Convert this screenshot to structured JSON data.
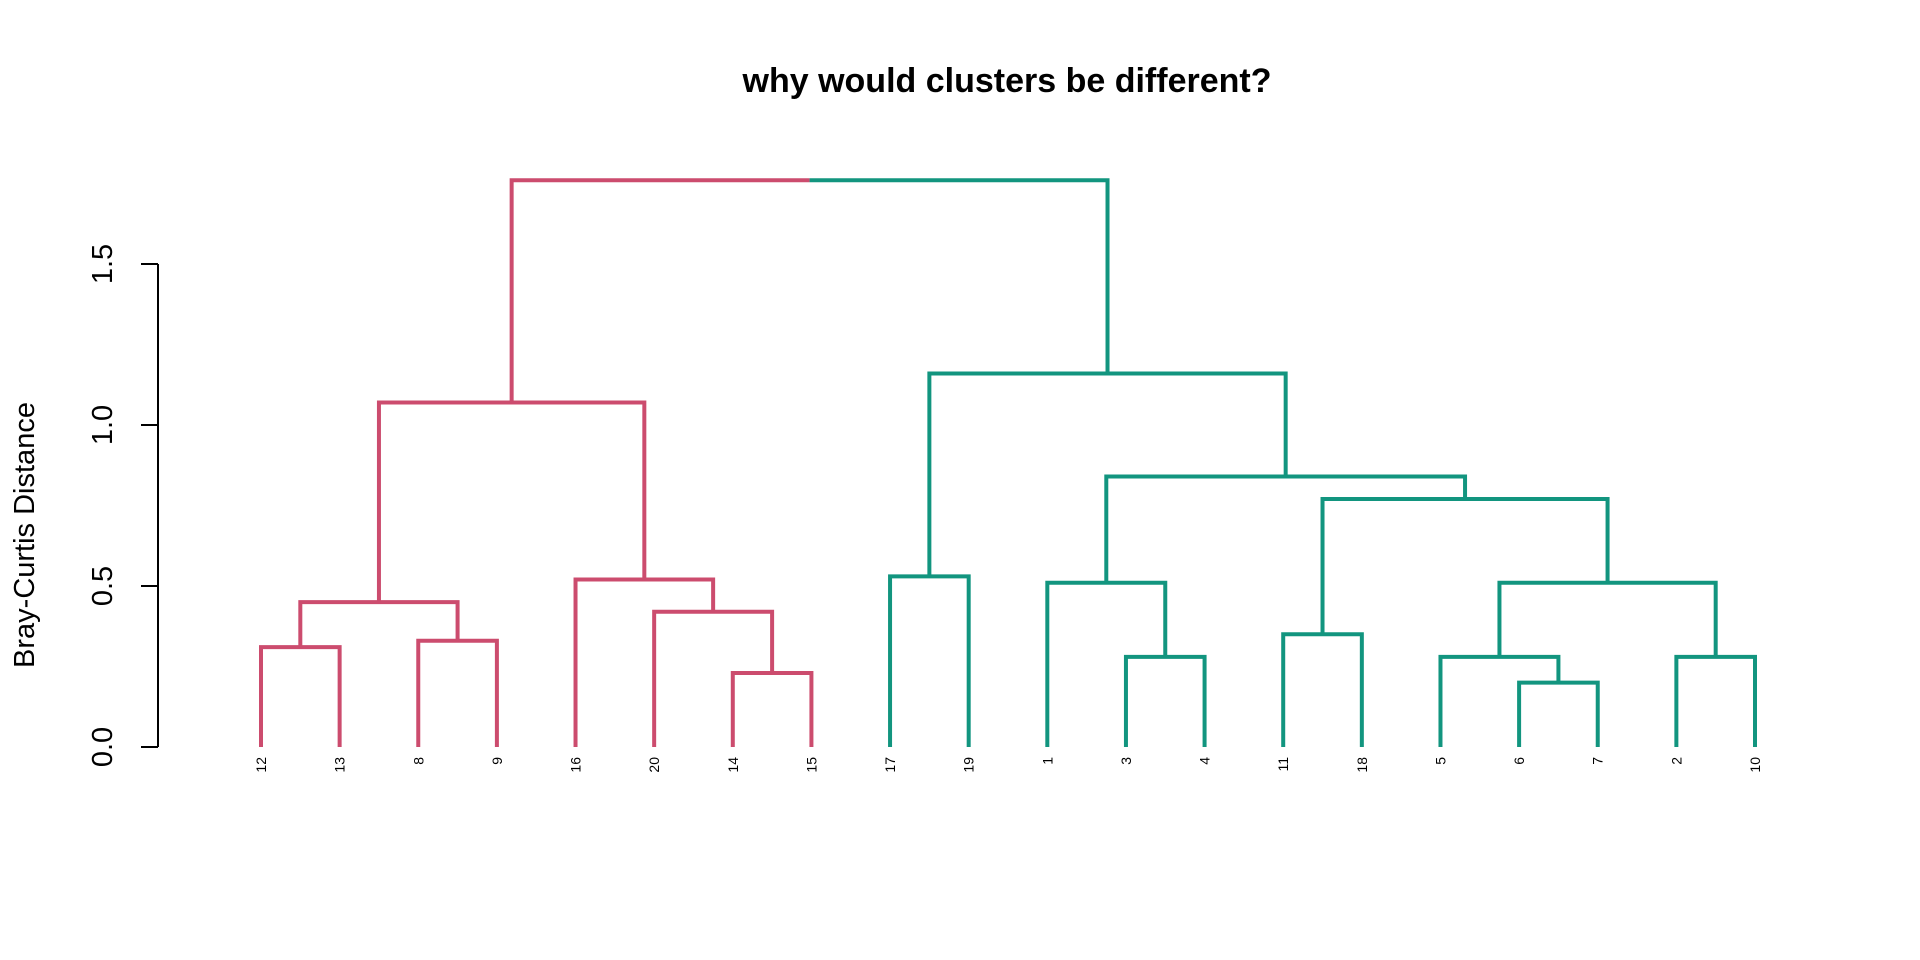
{
  "chart_data": {
    "type": "dendrogram",
    "title": "why would clusters be different?",
    "ylabel": "Bray-Curtis Distance",
    "xlabel": "",
    "ylim": [
      0,
      1.8
    ],
    "yticks": [
      0.0,
      0.5,
      1.0,
      1.5
    ],
    "ytick_labels": [
      "0.0",
      "0.5",
      "1.0",
      "1.5"
    ],
    "leaf_order": [
      "12",
      "13",
      "8",
      "9",
      "16",
      "20",
      "14",
      "15",
      "17",
      "19",
      "1",
      "3",
      "4",
      "11",
      "18",
      "5",
      "6",
      "7",
      "2",
      "10"
    ],
    "clusters": [
      {
        "color": "#CC4C6E",
        "leaves": [
          "12",
          "13",
          "8",
          "9",
          "16",
          "20",
          "14",
          "15"
        ]
      },
      {
        "color": "#12957F",
        "leaves": [
          "17",
          "19",
          "1",
          "3",
          "4",
          "11",
          "18",
          "5",
          "6",
          "7",
          "2",
          "10"
        ]
      }
    ],
    "merges": [
      {
        "id": "n1",
        "children": [
          "12",
          "13"
        ],
        "height": 0.31
      },
      {
        "id": "n2",
        "children": [
          "8",
          "9"
        ],
        "height": 0.33
      },
      {
        "id": "n3",
        "children": [
          "n1",
          "n2"
        ],
        "height": 0.45
      },
      {
        "id": "n4",
        "children": [
          "14",
          "15"
        ],
        "height": 0.23
      },
      {
        "id": "n5",
        "children": [
          "20",
          "n4"
        ],
        "height": 0.42
      },
      {
        "id": "n6",
        "children": [
          "16",
          "n5"
        ],
        "height": 0.52
      },
      {
        "id": "n7",
        "children": [
          "n3",
          "n6"
        ],
        "height": 1.07
      },
      {
        "id": "n8",
        "children": [
          "17",
          "19"
        ],
        "height": 0.53
      },
      {
        "id": "n9",
        "children": [
          "3",
          "4"
        ],
        "height": 0.28
      },
      {
        "id": "n10",
        "children": [
          "1",
          "n9"
        ],
        "height": 0.51
      },
      {
        "id": "n11",
        "children": [
          "11",
          "18"
        ],
        "height": 0.35
      },
      {
        "id": "n12",
        "children": [
          "6",
          "7"
        ],
        "height": 0.2
      },
      {
        "id": "n13",
        "children": [
          "5",
          "n12"
        ],
        "height": 0.28
      },
      {
        "id": "n14",
        "children": [
          "2",
          "10"
        ],
        "height": 0.28
      },
      {
        "id": "n15",
        "children": [
          "n13",
          "n14"
        ],
        "height": 0.51
      },
      {
        "id": "n16",
        "children": [
          "n11",
          "n15"
        ],
        "height": 0.77
      },
      {
        "id": "n17",
        "children": [
          "n10",
          "n16"
        ],
        "height": 0.84
      },
      {
        "id": "n18",
        "children": [
          "n8",
          "n17"
        ],
        "height": 1.16
      },
      {
        "id": "n19",
        "children": [
          "n7",
          "n18"
        ],
        "height": 1.76
      }
    ]
  }
}
